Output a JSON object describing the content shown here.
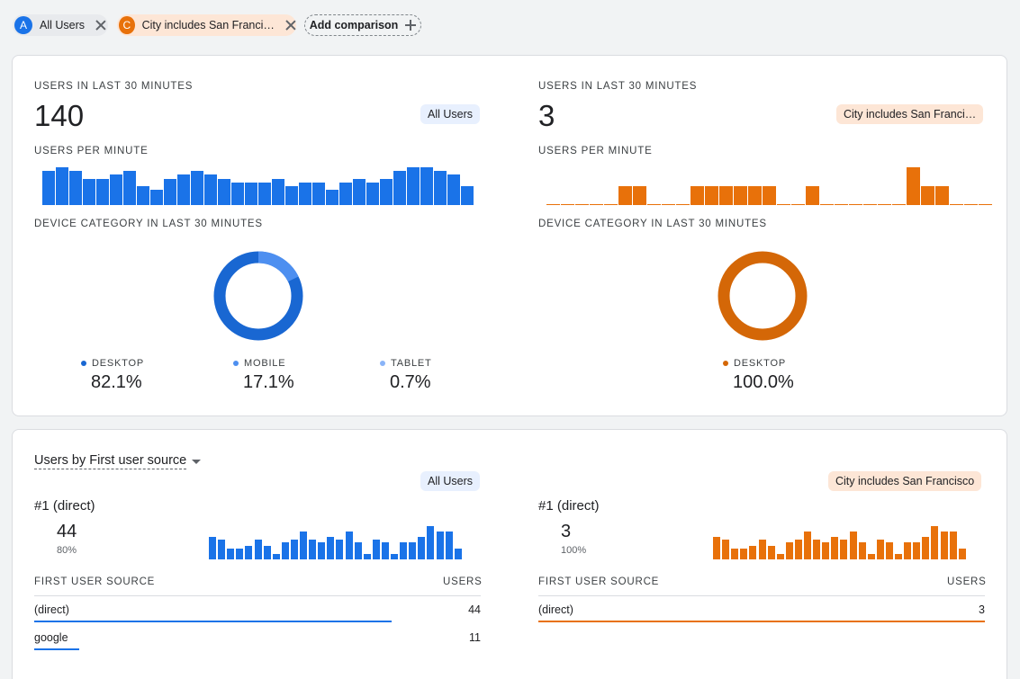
{
  "colors": {
    "blue": "#1a73e8",
    "blue_light": "#4d8ff0",
    "blue_pale": "#8ab4f8",
    "orange": "#e8710a",
    "orange_dark": "#d46707"
  },
  "comparisons": {
    "a": {
      "badge": "A",
      "label": "All Users",
      "close_icon": "close-icon"
    },
    "c": {
      "badge": "C",
      "label": "City includes San Franci…",
      "close_icon": "close-icon"
    },
    "add_label": "Add comparison"
  },
  "realtime": {
    "left": {
      "users_caption": "USERS IN LAST 30 MINUTES",
      "users_value": "140",
      "segment_pill": "All Users",
      "per_minute_caption": "USERS PER MINUTE",
      "per_minute": [
        9,
        10,
        9,
        7,
        7,
        8,
        9,
        5,
        4,
        7,
        8,
        9,
        8,
        7,
        6,
        6,
        6,
        7,
        5,
        6,
        6,
        4,
        6,
        7,
        6,
        7,
        9,
        10,
        10,
        9,
        8,
        5
      ],
      "device_caption": "DEVICE CATEGORY IN LAST 30 MINUTES",
      "devices": [
        {
          "label": "DESKTOP",
          "value": "82.1%",
          "share": 0.821
        },
        {
          "label": "MOBILE",
          "value": "17.1%",
          "share": 0.171
        },
        {
          "label": "TABLET",
          "value": "0.7%",
          "share": 0.007
        }
      ]
    },
    "right": {
      "users_caption": "USERS IN LAST 30 MINUTES",
      "users_value": "3",
      "segment_pill": "City includes San Franci…",
      "per_minute_caption": "USERS PER MINUTE",
      "per_minute": [
        0,
        0,
        0,
        0,
        0,
        1,
        1,
        0,
        0,
        0,
        1,
        1,
        1,
        1,
        1,
        1,
        0,
        0,
        1,
        0,
        0,
        0,
        0,
        0,
        0,
        2,
        1,
        1,
        0,
        0,
        0
      ],
      "device_caption": "DEVICE CATEGORY IN LAST 30 MINUTES",
      "devices": [
        {
          "label": "DESKTOP",
          "value": "100.0%",
          "share": 1.0
        }
      ]
    }
  },
  "sources": {
    "dropdown_label": "Users by First user source",
    "left": {
      "segment_pill": "All Users",
      "rank_label": "#1  (direct)",
      "rank_value": "44",
      "rank_pct": "80%",
      "sparkline": [
        8,
        7,
        4,
        4,
        5,
        7,
        5,
        2,
        6,
        7,
        10,
        7,
        6,
        8,
        7,
        10,
        6,
        2,
        7,
        6,
        2,
        6,
        6,
        8,
        12,
        10,
        10,
        4
      ],
      "col_source": "FIRST USER SOURCE",
      "col_users": "USERS",
      "rows": [
        {
          "source": "(direct)",
          "users": "44",
          "share": 0.8
        },
        {
          "source": "google",
          "users": "11",
          "share": 0.2
        }
      ]
    },
    "right": {
      "segment_pill": "City includes San Francisco",
      "rank_label": "#1  (direct)",
      "rank_value": "3",
      "rank_pct": "100%",
      "sparkline": [
        8,
        7,
        4,
        4,
        5,
        7,
        5,
        2,
        6,
        7,
        10,
        7,
        6,
        8,
        7,
        10,
        6,
        2,
        7,
        6,
        2,
        6,
        6,
        8,
        12,
        10,
        10,
        4
      ],
      "col_source": "FIRST USER SOURCE",
      "col_users": "USERS",
      "rows": [
        {
          "source": "(direct)",
          "users": "3",
          "share": 1.0
        }
      ]
    }
  }
}
